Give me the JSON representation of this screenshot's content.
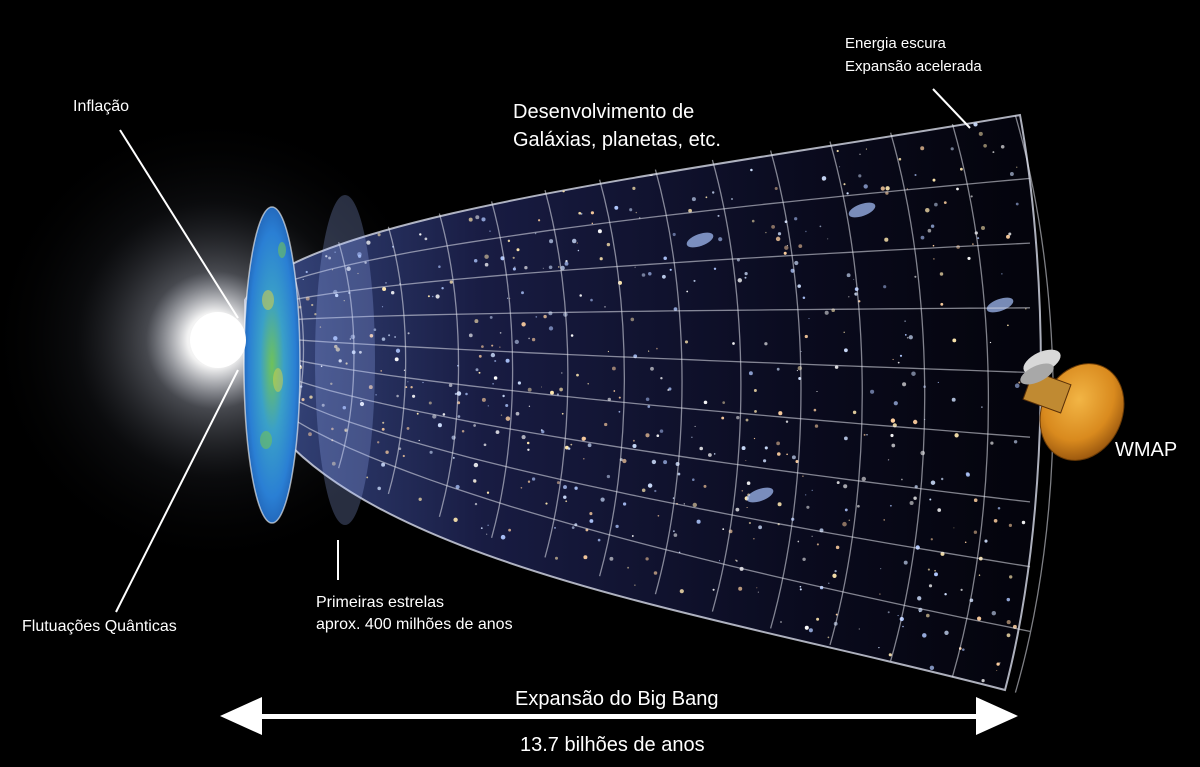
{
  "labels": {
    "inflation": "Inflação",
    "development_line1": "Desenvolvimento de",
    "development_line2": "Galáxias, planetas, etc.",
    "dark_energy_line1": "Energia escura",
    "dark_energy_line2": "Expansão acelerada",
    "wmap": "WMAP",
    "first_stars_line1": "Primeiras estrelas",
    "first_stars_line2": "aprox. 400 milhões de anos",
    "quantum_fluctuations": "Flutuações Quânticas",
    "expansion_title": "Expansão do Big Bang",
    "duration": "13.7 bilhões de anos"
  },
  "colors": {
    "background": "#000000",
    "text": "#ffffff",
    "cmb_blue": "#2a7fd4",
    "cmb_green": "#6fc25a",
    "cmb_yellow": "#e8d63a",
    "satellite_gold": "#d98a1e"
  },
  "icons": [
    "big-bang-glow",
    "cmb-disc",
    "wmap-satellite-icon",
    "double-arrow-icon"
  ]
}
